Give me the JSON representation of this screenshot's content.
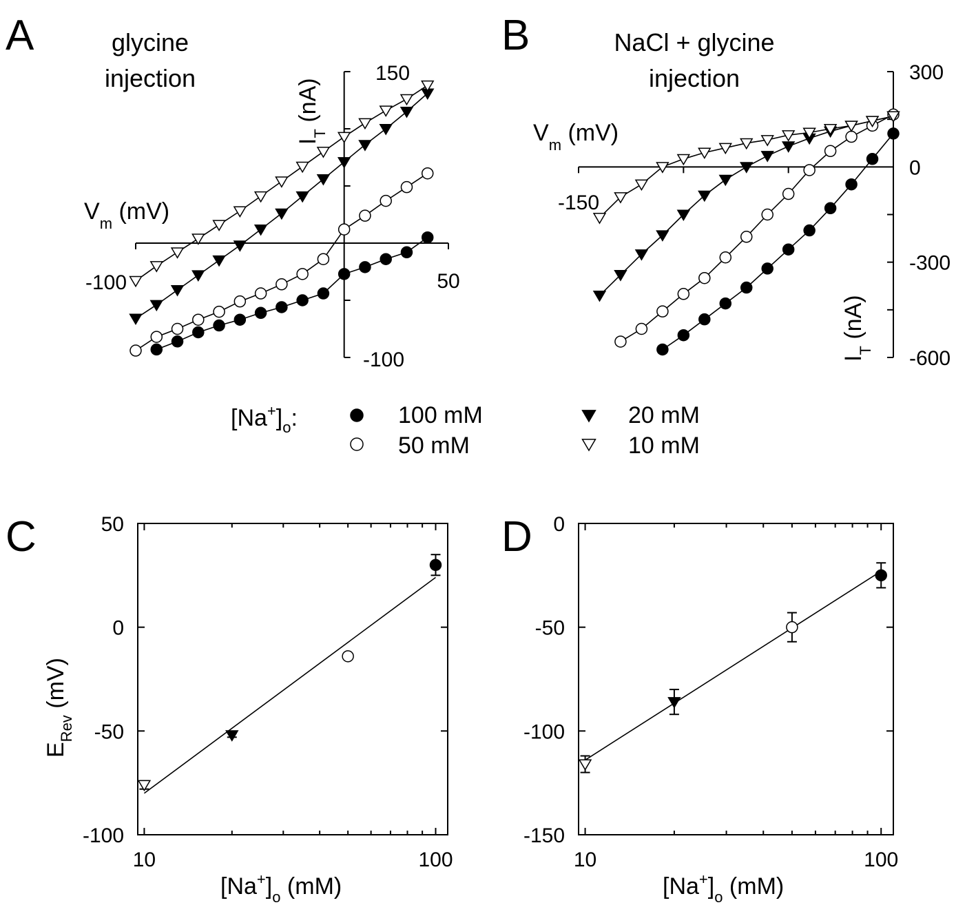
{
  "figure": {
    "legend": {
      "label_main": "[Na",
      "label_sup": "+",
      "label_close": "]",
      "label_sub": "o",
      "label_colon": ":",
      "entries": [
        {
          "label": "100 mM",
          "marker": "filled-circle"
        },
        {
          "label": "50 mM",
          "marker": "open-circle"
        },
        {
          "label": "20 mM",
          "marker": "filled-triangle-down"
        },
        {
          "label": "10 mM",
          "marker": "open-triangle-down"
        }
      ]
    }
  },
  "chart_data": [
    {
      "panel": "A",
      "type": "line",
      "title_lines": [
        "glycine",
        "injection"
      ],
      "xlabel_main": "V",
      "xlabel_sub": "m",
      "xlabel_unit": " (mV)",
      "ylabel_main": "I",
      "ylabel_sub": "T",
      "ylabel_unit": " (nA)",
      "xlim": [
        -100,
        50
      ],
      "ylim": [
        -100,
        150
      ],
      "x_tick_labels": [
        {
          "value": -100,
          "text": "-100"
        },
        {
          "value": 50,
          "text": "50"
        }
      ],
      "y_tick_labels": [
        {
          "value": 150,
          "text": "150"
        },
        {
          "value": -100,
          "text": "-100"
        }
      ],
      "x": [
        -100,
        -90,
        -80,
        -70,
        -60,
        -50,
        -40,
        -30,
        -20,
        -10,
        0,
        10,
        20,
        30,
        40
      ],
      "series": [
        {
          "name": "100 mM",
          "marker": "filled-circle",
          "x": [
            -90,
            -80,
            -70,
            -60,
            -50,
            -40,
            -30,
            -20,
            -10,
            0,
            10,
            20,
            30,
            40
          ],
          "values": [
            -93,
            -86,
            -78,
            -72,
            -67,
            -61,
            -56,
            -50,
            -44,
            -27,
            -21,
            -14,
            -8,
            5
          ]
        },
        {
          "name": "50 mM",
          "marker": "open-circle",
          "values": [
            -94,
            -82,
            -75,
            -67,
            -60,
            -51,
            -44,
            -36,
            -27,
            -14,
            12,
            24,
            37,
            49,
            61
          ]
        },
        {
          "name": "20 mM",
          "marker": "filled-triangle-down",
          "values": [
            -66,
            -54,
            -41,
            -28,
            -15,
            -2,
            12,
            26,
            41,
            56,
            71,
            86,
            100,
            115,
            131
          ]
        },
        {
          "name": "10 mM",
          "marker": "open-triangle-down",
          "values": [
            -33,
            -20,
            -8,
            4,
            16,
            28,
            41,
            54,
            67,
            80,
            93,
            105,
            116,
            126,
            138
          ]
        }
      ]
    },
    {
      "panel": "B",
      "type": "line",
      "title_lines": [
        "NaCl + glycine",
        "injection"
      ],
      "xlabel_main": "V",
      "xlabel_sub": "m",
      "xlabel_unit": " (mV)",
      "ylabel_main": "I",
      "ylabel_sub": "T",
      "ylabel_unit": " (nA)",
      "xlim": [
        -150,
        0
      ],
      "ylim": [
        -600,
        300
      ],
      "x_tick_labels": [
        {
          "value": -150,
          "text": "-150"
        }
      ],
      "y_tick_labels": [
        {
          "value": 300,
          "text": "300"
        },
        {
          "value": 0,
          "text": "0"
        },
        {
          "value": -300,
          "text": "-300"
        },
        {
          "value": -600,
          "text": "-600"
        }
      ],
      "series": [
        {
          "name": "100 mM",
          "marker": "filled-circle",
          "x": [
            -110,
            -100,
            -90,
            -80,
            -70,
            -60,
            -50,
            -40,
            -30,
            -20,
            -10,
            0
          ],
          "values": [
            -575,
            -530,
            -480,
            -430,
            -380,
            -320,
            -260,
            -200,
            -130,
            -55,
            25,
            105
          ]
        },
        {
          "name": "50 mM",
          "marker": "open-circle",
          "x": [
            -130,
            -120,
            -110,
            -100,
            -90,
            -80,
            -70,
            -60,
            -50,
            -40,
            -30,
            -20,
            -10,
            0
          ],
          "values": [
            -550,
            -510,
            -455,
            -400,
            -350,
            -285,
            -220,
            -150,
            -85,
            -10,
            50,
            95,
            130,
            165
          ]
        },
        {
          "name": "20 mM",
          "marker": "filled-triangle-down",
          "x": [
            -140,
            -130,
            -120,
            -110,
            -100,
            -90,
            -80,
            -70,
            -60,
            -50,
            -40,
            -30,
            -20,
            -10,
            0
          ],
          "values": [
            -405,
            -340,
            -275,
            -215,
            -150,
            -90,
            -40,
            0,
            35,
            65,
            90,
            112,
            130,
            145,
            160
          ]
        },
        {
          "name": "10 mM",
          "marker": "open-triangle-down",
          "x": [
            -140,
            -130,
            -120,
            -110,
            -100,
            -90,
            -80,
            -70,
            -60,
            -50,
            -40,
            -30,
            -20,
            -10,
            0
          ],
          "values": [
            -160,
            -95,
            -55,
            0,
            25,
            45,
            60,
            75,
            85,
            100,
            108,
            120,
            130,
            145,
            160
          ]
        }
      ]
    },
    {
      "panel": "C",
      "type": "scatter",
      "x_scale": "log",
      "xlabel_main": "[Na",
      "xlabel_sup": "+",
      "xlabel_close": "]",
      "xlabel_sub": "o",
      "xlabel_unit": " (mM)",
      "ylabel_main": "E",
      "ylabel_sub": "Rev",
      "ylabel_unit": " (mV)",
      "xlim": [
        10,
        100
      ],
      "ylim": [
        -100,
        50
      ],
      "x_tick_labels": [
        {
          "value": 10,
          "text": "10"
        },
        {
          "value": 100,
          "text": "100"
        }
      ],
      "y_tick_labels": [
        {
          "value": 50,
          "text": "50"
        },
        {
          "value": 0,
          "text": "0"
        },
        {
          "value": -50,
          "text": "-50"
        },
        {
          "value": -100,
          "text": "-100"
        }
      ],
      "points": [
        {
          "name": "10 mM",
          "marker": "open-triangle-down",
          "x": 10,
          "y": -76,
          "err": 2
        },
        {
          "name": "20 mM",
          "marker": "filled-triangle-down",
          "x": 20,
          "y": -52,
          "err": 1
        },
        {
          "name": "50 mM",
          "marker": "open-circle",
          "x": 50,
          "y": -14,
          "err": 1
        },
        {
          "name": "100 mM",
          "marker": "filled-circle",
          "x": 100,
          "y": 30,
          "err": 5
        }
      ],
      "fit": {
        "x": [
          10,
          100
        ],
        "y": [
          -80,
          24
        ]
      }
    },
    {
      "panel": "D",
      "type": "scatter",
      "x_scale": "log",
      "xlabel_main": "[Na",
      "xlabel_sup": "+",
      "xlabel_close": "]",
      "xlabel_sub": "o",
      "xlabel_unit": " (mM)",
      "xlim": [
        10,
        100
      ],
      "ylim": [
        -150,
        0
      ],
      "x_tick_labels": [
        {
          "value": 10,
          "text": "10"
        },
        {
          "value": 100,
          "text": "100"
        }
      ],
      "y_tick_labels": [
        {
          "value": 0,
          "text": "0"
        },
        {
          "value": -50,
          "text": "-50"
        },
        {
          "value": -100,
          "text": "-100"
        },
        {
          "value": -150,
          "text": "-150"
        }
      ],
      "points": [
        {
          "name": "10 mM",
          "marker": "open-triangle-down",
          "x": 10,
          "y": -116,
          "err": 4
        },
        {
          "name": "20 mM",
          "marker": "filled-triangle-down",
          "x": 20,
          "y": -86,
          "err": 6
        },
        {
          "name": "50 mM",
          "marker": "open-circle",
          "x": 50,
          "y": -50,
          "err": 7
        },
        {
          "name": "100 mM",
          "marker": "filled-circle",
          "x": 100,
          "y": -25,
          "err": 6
        }
      ],
      "fit": {
        "x": [
          10,
          100
        ],
        "y": [
          -114,
          -23
        ]
      }
    }
  ]
}
